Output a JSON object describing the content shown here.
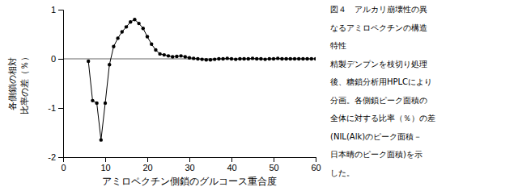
{
  "chart_data": {
    "type": "line",
    "xlabel": "アミロペクチン側鎖のグルコース重合度",
    "ylabel": [
      "各側鎖の相対",
      "比率の差（％）"
    ],
    "x": [
      6,
      7,
      8,
      9,
      10,
      11,
      12,
      13,
      14,
      15,
      16,
      17,
      18,
      19,
      20,
      21,
      22,
      23,
      24,
      25,
      26,
      27,
      28,
      29,
      30,
      31,
      32,
      33,
      34,
      35,
      36,
      37,
      38,
      39,
      40,
      41,
      42,
      43,
      44,
      45,
      46,
      47,
      48,
      49,
      50,
      51,
      52,
      53,
      54,
      55,
      56,
      57,
      58,
      59,
      60
    ],
    "values": [
      -0.05,
      -0.85,
      -0.9,
      -1.65,
      -0.9,
      -0.12,
      0.25,
      0.42,
      0.55,
      0.65,
      0.75,
      0.8,
      0.72,
      0.62,
      0.45,
      0.3,
      0.18,
      0.1,
      0.08,
      0.06,
      0.04,
      0.05,
      0.06,
      0.04,
      0.02,
      0.01,
      0.0,
      -0.01,
      -0.02,
      -0.02,
      -0.01,
      0.0,
      0.0,
      0.01,
      0.0,
      -0.01,
      0.0,
      0.0,
      0.0,
      0.01,
      0.0,
      0.0,
      -0.01,
      0.0,
      0.0,
      0.01,
      0.0,
      0.0,
      0.0,
      0.0,
      0.0,
      0.0,
      0.0,
      0.0,
      0.0
    ],
    "color": "#000000",
    "marker": "circle",
    "reference_line": 0,
    "xlim": [
      0,
      60
    ],
    "ylim": [
      -2,
      1
    ],
    "xticks": [
      0,
      10,
      20,
      30,
      40,
      50,
      60
    ],
    "yticks": [
      -2,
      -1,
      0,
      1
    ],
    "caption": [
      "図４　アルカリ崩壊性の異",
      "なるアミロペクチンの構造",
      "特性",
      "精製デンプンを枝切り処理",
      "後、糖鎖分析用HPLCにより",
      "分画。各側鎖ピーク面積の",
      "全体に対する比率（％）の差",
      "(NIL(Alk)のピーク面積－",
      "日本晴のピーク面積)を示",
      "した。"
    ]
  }
}
